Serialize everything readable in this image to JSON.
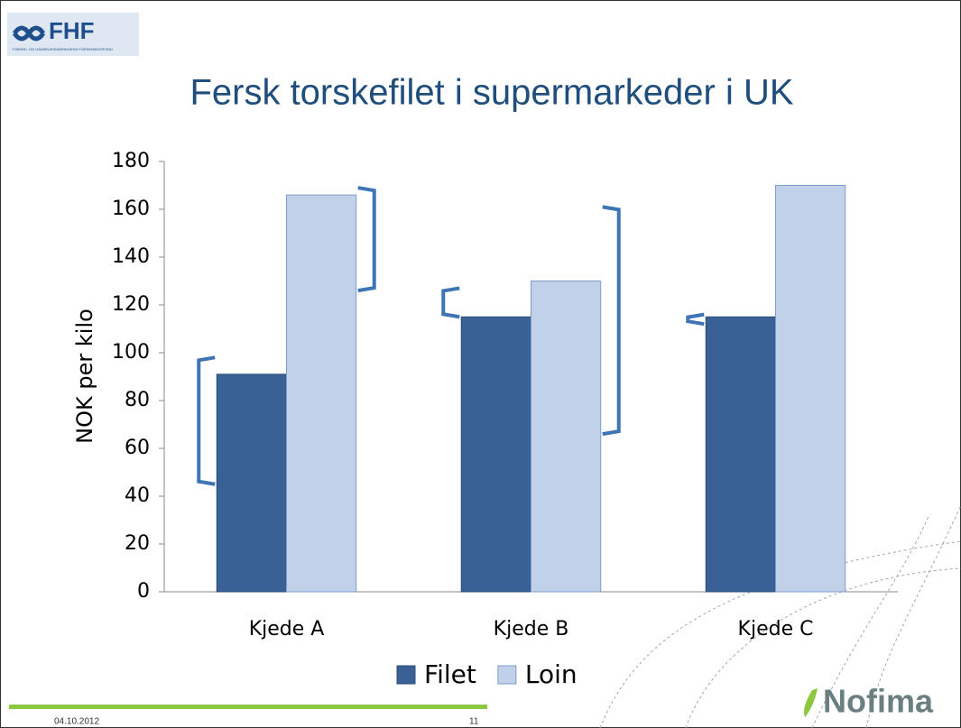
{
  "logo": {
    "name": "FHF",
    "subtitle": "FISKERI- OG HAVBRUKSNÆRINGENS FORSKNINGSFOND"
  },
  "chart_data": {
    "type": "bar",
    "title": "Fersk torskefilet i supermarkeder i UK",
    "y_label": "NOK per kilo",
    "categories": [
      "Kjede A",
      "Kjede B",
      "Kjede C"
    ],
    "series": [
      {
        "name": "Filet",
        "color": "#3a6195",
        "values": [
          91,
          115,
          115
        ],
        "ranges": [
          [
            45,
            98
          ],
          [
            115,
            127
          ],
          [
            112,
            116
          ]
        ]
      },
      {
        "name": "Loin",
        "color": "#c1d1ea",
        "values": [
          166,
          130,
          170
        ],
        "ranges": [
          [
            126,
            169
          ],
          [
            66,
            161
          ],
          null
        ]
      }
    ],
    "ylim": [
      0,
      180
    ],
    "yticks": [
      0,
      20,
      40,
      60,
      80,
      100,
      120,
      140,
      160,
      180
    ],
    "legend": "bottom"
  },
  "footer": {
    "date": "04.10.2012",
    "page": "11",
    "brand": "Nofima"
  }
}
